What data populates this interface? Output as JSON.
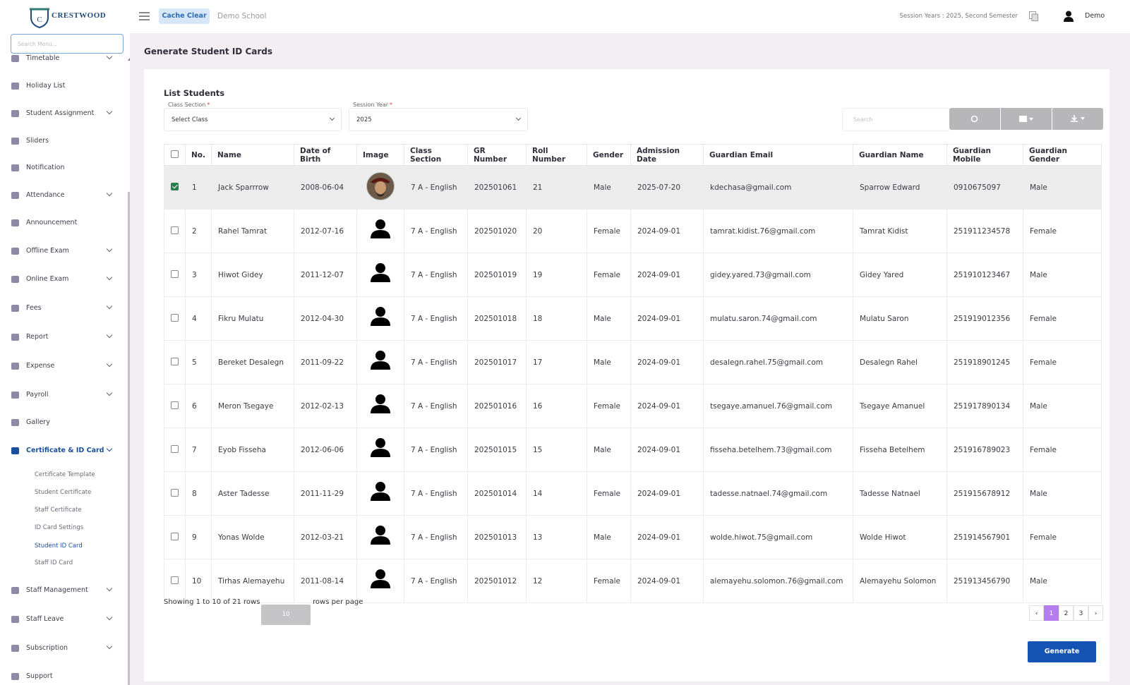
{
  "header": {
    "logo_text": "CRESTWOOD",
    "cache_button": "Cache Clear",
    "school_name": "Demo School",
    "session": "Session Years : 2025, Second Semester",
    "user_name": "Demo"
  },
  "sidebar": {
    "search_placeholder": "Search Menu...",
    "items": [
      {
        "label": "Timetable",
        "expandable": true
      },
      {
        "label": "Holiday List",
        "expandable": false
      },
      {
        "label": "Student Assignment",
        "expandable": true
      },
      {
        "label": "Sliders",
        "expandable": false
      },
      {
        "label": "Notification",
        "expandable": false
      },
      {
        "label": "Attendance",
        "expandable": true
      },
      {
        "label": "Announcement",
        "expandable": false
      },
      {
        "label": "Offline Exam",
        "expandable": true
      },
      {
        "label": "Online Exam",
        "expandable": true
      },
      {
        "label": "Fees",
        "expandable": true
      },
      {
        "label": "Report",
        "expandable": true
      },
      {
        "label": "Expense",
        "expandable": true
      },
      {
        "label": "Payroll",
        "expandable": true
      },
      {
        "label": "Gallery",
        "expandable": false
      },
      {
        "label": "Certificate & ID Card",
        "expandable": true,
        "active": true,
        "submenu": [
          {
            "label": "Certificate Template"
          },
          {
            "label": "Student Certificate"
          },
          {
            "label": "Staff Certificate"
          },
          {
            "label": "ID Card Settings"
          },
          {
            "label": "Student ID Card",
            "active": true
          },
          {
            "label": "Staff ID Card"
          }
        ]
      },
      {
        "label": "Staff Management",
        "expandable": true
      },
      {
        "label": "Staff Leave",
        "expandable": true
      },
      {
        "label": "Subscription",
        "expandable": true
      },
      {
        "label": "Support",
        "expandable": false
      }
    ]
  },
  "page_title": "Generate Student ID Cards",
  "card": {
    "title": "List Students",
    "filters": [
      {
        "label": "Class Section",
        "required_mark": "*",
        "value": "Select Class"
      },
      {
        "label": "Session Year",
        "required_mark": "*",
        "value": "2025"
      }
    ],
    "search_placeholder": "Search"
  },
  "table": {
    "columns": [
      "No.",
      "Name",
      "Date of Birth",
      "Image",
      "Class Section",
      "GR Number",
      "Roll Number",
      "Gender",
      "Admission Date",
      "Guardian Email",
      "Guardian Name",
      "Guardian Mobile",
      "Guardian Gender"
    ],
    "rows": [
      {
        "selected": true,
        "photo": true,
        "cells": [
          "1",
          "Jack Sparrrow",
          "2008-06-04",
          "7 A - English",
          "202501061",
          "21",
          "Male",
          "2025-07-20",
          "kdechasa@gmail.com",
          "Sparrow Edward",
          "0910675097",
          "Male"
        ]
      },
      {
        "selected": false,
        "photo": false,
        "cells": [
          "2",
          "Rahel Tamrat",
          "2012-07-16",
          "7 A - English",
          "202501020",
          "20",
          "Female",
          "2024-09-01",
          "tamrat.kidist.76@gmail.com",
          "Tamrat Kidist",
          "251911234578",
          "Female"
        ]
      },
      {
        "selected": false,
        "photo": false,
        "cells": [
          "3",
          "Hiwot Gidey",
          "2011-12-07",
          "7 A - English",
          "202501019",
          "19",
          "Female",
          "2024-09-01",
          "gidey.yared.73@gmail.com",
          "Gidey Yared",
          "251910123467",
          "Male"
        ]
      },
      {
        "selected": false,
        "photo": false,
        "cells": [
          "4",
          "Fikru Mulatu",
          "2012-04-30",
          "7 A - English",
          "202501018",
          "18",
          "Male",
          "2024-09-01",
          "mulatu.saron.74@gmail.com",
          "Mulatu Saron",
          "251919012356",
          "Female"
        ]
      },
      {
        "selected": false,
        "photo": false,
        "cells": [
          "5",
          "Bereket Desalegn",
          "2011-09-22",
          "7 A - English",
          "202501017",
          "17",
          "Male",
          "2024-09-01",
          "desalegn.rahel.75@gmail.com",
          "Desalegn Rahel",
          "251918901245",
          "Female"
        ]
      },
      {
        "selected": false,
        "photo": false,
        "cells": [
          "6",
          "Meron Tsegaye",
          "2012-02-13",
          "7 A - English",
          "202501016",
          "16",
          "Female",
          "2024-09-01",
          "tsegaye.amanuel.76@gmail.com",
          "Tsegaye Amanuel",
          "251917890134",
          "Male"
        ]
      },
      {
        "selected": false,
        "photo": false,
        "cells": [
          "7",
          "Eyob Fisseha",
          "2012-06-06",
          "7 A - English",
          "202501015",
          "15",
          "Male",
          "2024-09-01",
          "fisseha.betelhem.73@gmail.com",
          "Fisseha Betelhem",
          "251916789023",
          "Female"
        ]
      },
      {
        "selected": false,
        "photo": false,
        "cells": [
          "8",
          "Aster Tadesse",
          "2011-11-29",
          "7 A - English",
          "202501014",
          "14",
          "Female",
          "2024-09-01",
          "tadesse.natnael.74@gmail.com",
          "Tadesse Natnael",
          "251915678912",
          "Male"
        ]
      },
      {
        "selected": false,
        "photo": false,
        "cells": [
          "9",
          "Yonas Wolde",
          "2012-03-21",
          "7 A - English",
          "202501013",
          "13",
          "Male",
          "2024-09-01",
          "wolde.hiwot.75@gmail.com",
          "Wolde Hiwot",
          "251914567901",
          "Female"
        ]
      },
      {
        "selected": false,
        "photo": false,
        "cells": [
          "10",
          "Tirhas Alemayehu",
          "2011-08-14",
          "7 A - English",
          "202501012",
          "12",
          "Female",
          "2024-09-01",
          "alemayehu.solomon.76@gmail.com",
          "Alemayehu Solomon",
          "251913456790",
          "Male"
        ]
      }
    ]
  },
  "footer": {
    "showing": "Showing 1 to 10 of 21 rows",
    "page_size": "10",
    "rows_per_page": "rows per page",
    "prev": "‹",
    "pages": [
      "1",
      "2",
      "3"
    ],
    "active_page": 0,
    "next": "›",
    "generate_button": "Generate"
  }
}
